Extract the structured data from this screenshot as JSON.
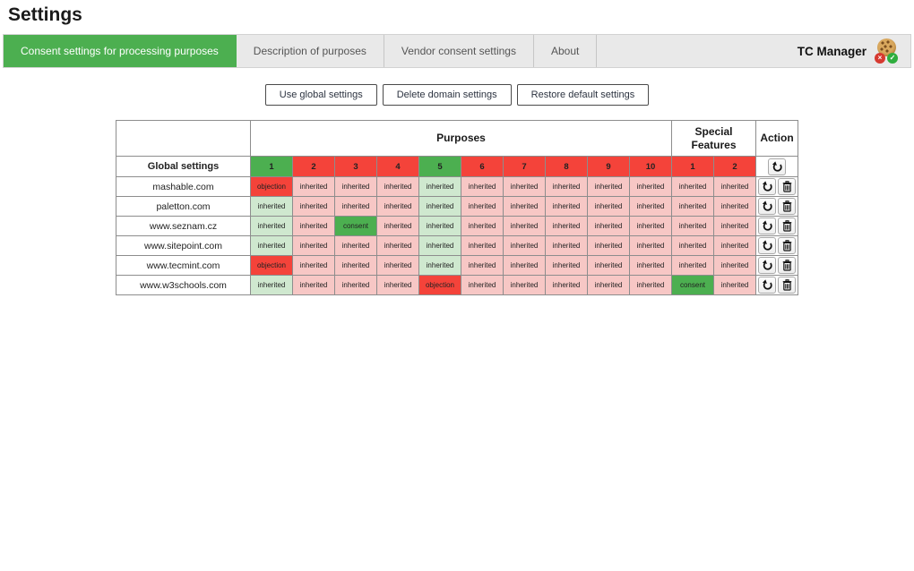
{
  "page": {
    "title": "Settings"
  },
  "tabs": [
    {
      "id": "consent-settings-for-processing-purposes",
      "label": "Consent settings for processing purposes",
      "active": true
    },
    {
      "id": "description-of-purposes",
      "label": "Description of purposes",
      "active": false
    },
    {
      "id": "vendor-consent-settings",
      "label": "Vendor consent settings",
      "active": false
    },
    {
      "id": "about",
      "label": "About",
      "active": false
    }
  ],
  "brand": {
    "label": "TC Manager",
    "logo": "cookie-logo"
  },
  "toolbar": {
    "buttons": [
      {
        "id": "use-global-settings",
        "label": "Use global settings"
      },
      {
        "id": "delete-domain-settings",
        "label": "Delete domain settings"
      },
      {
        "id": "restore-default-settings",
        "label": "Restore default settings"
      }
    ]
  },
  "table": {
    "headers": {
      "corner": "",
      "purposes": "Purposes",
      "special_features": "Special Features",
      "action": "Action"
    },
    "state_labels": {
      "consent": "consent",
      "objection": "objection",
      "inherited_consent": "inherited",
      "inherited_objection": "inherited"
    },
    "global_row": {
      "label": "Global settings",
      "numbers": [
        "1",
        "2",
        "3",
        "4",
        "5",
        "6",
        "7",
        "8",
        "9",
        "10",
        "1",
        "2"
      ],
      "states": [
        "consent",
        "objection",
        "objection",
        "objection",
        "consent",
        "objection",
        "objection",
        "objection",
        "objection",
        "objection",
        "objection",
        "objection"
      ]
    },
    "rows": [
      {
        "domain": "mashable.com",
        "states": [
          "objection",
          "inherited_objection",
          "inherited_objection",
          "inherited_objection",
          "inherited_consent",
          "inherited_objection",
          "inherited_objection",
          "inherited_objection",
          "inherited_objection",
          "inherited_objection",
          "inherited_objection",
          "inherited_objection"
        ]
      },
      {
        "domain": "paletton.com",
        "states": [
          "inherited_consent",
          "inherited_objection",
          "inherited_objection",
          "inherited_objection",
          "inherited_consent",
          "inherited_objection",
          "inherited_objection",
          "inherited_objection",
          "inherited_objection",
          "inherited_objection",
          "inherited_objection",
          "inherited_objection"
        ]
      },
      {
        "domain": "www.seznam.cz",
        "states": [
          "inherited_consent",
          "inherited_objection",
          "consent",
          "inherited_objection",
          "inherited_consent",
          "inherited_objection",
          "inherited_objection",
          "inherited_objection",
          "inherited_objection",
          "inherited_objection",
          "inherited_objection",
          "inherited_objection"
        ]
      },
      {
        "domain": "www.sitepoint.com",
        "states": [
          "inherited_consent",
          "inherited_objection",
          "inherited_objection",
          "inherited_objection",
          "inherited_consent",
          "inherited_objection",
          "inherited_objection",
          "inherited_objection",
          "inherited_objection",
          "inherited_objection",
          "inherited_objection",
          "inherited_objection"
        ]
      },
      {
        "domain": "www.tecmint.com",
        "states": [
          "objection",
          "inherited_objection",
          "inherited_objection",
          "inherited_objection",
          "inherited_consent",
          "inherited_objection",
          "inherited_objection",
          "inherited_objection",
          "inherited_objection",
          "inherited_objection",
          "inherited_objection",
          "inherited_objection"
        ]
      },
      {
        "domain": "www.w3schools.com",
        "states": [
          "inherited_consent",
          "inherited_objection",
          "inherited_objection",
          "inherited_objection",
          "objection",
          "inherited_objection",
          "inherited_objection",
          "inherited_objection",
          "inherited_objection",
          "inherited_objection",
          "consent",
          "inherited_objection"
        ]
      }
    ],
    "action_icons": {
      "reset": "undo-icon",
      "delete": "trash-icon"
    },
    "logo_badges": {
      "reject": "×",
      "accept": "✓"
    }
  },
  "colors": {
    "accent_green": "#4caf50",
    "consent_green": "#4caf50",
    "objection_red": "#f4433a",
    "inherited_consent_bg": "#cfe8cf",
    "inherited_objection_bg": "#f7c7c5"
  }
}
